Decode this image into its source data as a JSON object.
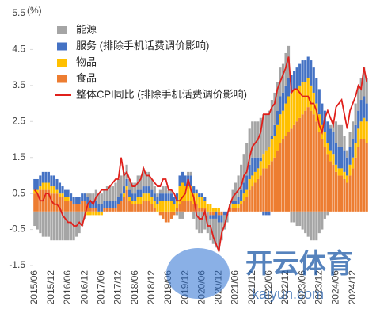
{
  "chart_data": {
    "type": "bar",
    "ylabel": "(%)",
    "ylim": [
      -1.5,
      5.5
    ],
    "yticks": [
      -1.5,
      -0.5,
      0.5,
      1.5,
      2.5,
      3.5,
      4.5,
      5.5
    ],
    "legend": "upper left",
    "stacked": true,
    "watermark": [
      "开云体育",
      "kaiyun.com"
    ],
    "categories": [
      "2015/06",
      null,
      null,
      null,
      null,
      null,
      "2015/12",
      null,
      null,
      null,
      null,
      null,
      "2016/06",
      null,
      null,
      null,
      null,
      null,
      "2016/12",
      null,
      null,
      null,
      null,
      null,
      "2017/06",
      null,
      null,
      null,
      null,
      null,
      "2017/12",
      null,
      null,
      null,
      null,
      null,
      "2018/06",
      null,
      null,
      null,
      null,
      null,
      "2018/12",
      null,
      null,
      null,
      null,
      null,
      "2019/06",
      null,
      null,
      null,
      null,
      null,
      "2019/12",
      null,
      null,
      null,
      null,
      null,
      "2020/06",
      null,
      null,
      null,
      null,
      null,
      "2020/12",
      null,
      null,
      null,
      null,
      null,
      "2021/06",
      null,
      null,
      null,
      null,
      null,
      "2021/12",
      null,
      null,
      null,
      null,
      null,
      "2022/06",
      null,
      null,
      null,
      null,
      null,
      "2022/12",
      null,
      null,
      null,
      null,
      null,
      "2023/06",
      null,
      null,
      null,
      null,
      null,
      "2023/12",
      null,
      null,
      null,
      null,
      null,
      "2024/06",
      null,
      null,
      null,
      null,
      null,
      "2024/12",
      null,
      null,
      null,
      null,
      null
    ],
    "series": [
      {
        "name": "能源",
        "color": "#a5a5a5",
        "values": [
          -0.4,
          -0.5,
          -0.6,
          -0.7,
          -0.7,
          -0.7,
          -0.8,
          -0.8,
          -0.8,
          -0.8,
          -0.8,
          -0.8,
          -0.8,
          -0.8,
          -0.8,
          -0.7,
          -0.6,
          -0.4,
          -0.2,
          0.1,
          0.2,
          0.2,
          0.3,
          0.3,
          0.3,
          0.3,
          0.4,
          0.4,
          0.4,
          0.5,
          0.5,
          0.5,
          0.4,
          0.4,
          0.3,
          0.3,
          0.3,
          0.4,
          0.4,
          0.5,
          0.4,
          0.4,
          0.3,
          0.2,
          0.1,
          0.1,
          0.2,
          0.2,
          0.1,
          0.1,
          0.0,
          -0.1,
          -0.2,
          -0.2,
          0.0,
          0.1,
          0.1,
          -0.2,
          -0.5,
          -0.6,
          -0.6,
          -0.5,
          -0.6,
          -0.6,
          -0.7,
          -0.8,
          -0.8,
          -0.5,
          -0.4,
          -0.2,
          0.1,
          0.3,
          0.5,
          0.6,
          0.7,
          0.8,
          0.9,
          1.0,
          1.0,
          1.0,
          1.0,
          1.1,
          1.1,
          1.0,
          1.0,
          1.0,
          0.9,
          0.8,
          0.8,
          0.8,
          0.9,
          0.9,
          -0.3,
          -0.3,
          -0.4,
          -0.4,
          -0.5,
          -0.6,
          -0.7,
          -0.8,
          -0.8,
          -0.8,
          -0.6,
          -0.5,
          -0.2,
          -0.1,
          0.1,
          0.3,
          0.6,
          0.6,
          0.6,
          0.4,
          0.2,
          0.4,
          0.5,
          0.6,
          0.7,
          0.6,
          0.8,
          0.7
        ]
      },
      {
        "name": "服务 (排除手机话费调价影响)",
        "color": "#4472c4",
        "values": [
          0.3,
          0.3,
          0.3,
          0.3,
          0.3,
          0.3,
          0.3,
          0.3,
          0.3,
          0.3,
          0.2,
          0.2,
          0.2,
          0.2,
          0.2,
          0.2,
          0.2,
          0.2,
          0.2,
          0.2,
          0.2,
          0.2,
          0.2,
          0.2,
          0.2,
          0.2,
          0.2,
          0.2,
          0.2,
          0.2,
          0.2,
          0.2,
          0.2,
          0.2,
          0.2,
          0.2,
          0.2,
          0.2,
          0.2,
          0.2,
          0.2,
          0.2,
          0.2,
          0.2,
          0.2,
          0.2,
          0.2,
          0.2,
          0.2,
          0.2,
          0.2,
          0.2,
          0.3,
          0.3,
          0.3,
          0.3,
          0.3,
          0.2,
          0.1,
          0.1,
          0.1,
          0.1,
          0.0,
          -0.1,
          -0.1,
          -0.2,
          -0.2,
          -0.2,
          -0.1,
          -0.1,
          0.0,
          0.1,
          0.1,
          0.2,
          0.3,
          0.3,
          0.4,
          0.4,
          0.5,
          0.4,
          0.3,
          0.1,
          -0.1,
          -0.1,
          -0.1,
          0.1,
          0.3,
          0.4,
          0.5,
          0.5,
          0.5,
          0.5,
          0.5,
          0.5,
          0.6,
          0.6,
          0.6,
          0.6,
          0.6,
          0.7,
          0.7,
          0.7,
          0.7,
          0.6,
          0.6,
          0.6,
          0.6,
          0.6,
          0.6,
          0.6,
          0.6,
          0.6,
          0.5,
          0.5,
          0.5,
          0.5,
          0.5,
          0.6,
          0.6,
          0.5
        ]
      },
      {
        "name": "物品",
        "color": "#ffc000",
        "values": [
          0.1,
          0.1,
          0.1,
          0.2,
          0.2,
          0.2,
          0.2,
          0.2,
          0.1,
          0.1,
          0.1,
          0.1,
          0.1,
          0.0,
          0.0,
          0.0,
          0.0,
          0.0,
          0.0,
          -0.1,
          -0.1,
          -0.1,
          -0.1,
          -0.1,
          -0.1,
          0.0,
          0.0,
          0.0,
          0.0,
          0.0,
          0.0,
          0.0,
          0.1,
          0.1,
          0.1,
          0.1,
          0.1,
          0.2,
          0.2,
          0.2,
          0.2,
          0.2,
          0.2,
          0.2,
          0.2,
          0.3,
          0.3,
          0.3,
          0.3,
          0.3,
          0.2,
          0.2,
          0.5,
          0.5,
          0.4,
          0.4,
          0.4,
          0.3,
          0.3,
          0.3,
          0.3,
          0.2,
          0.2,
          0.2,
          0.1,
          0.1,
          0.1,
          0.0,
          0.0,
          0.0,
          0.0,
          0.1,
          0.1,
          0.1,
          0.1,
          0.2,
          0.2,
          0.3,
          0.3,
          0.3,
          0.3,
          0.4,
          0.4,
          0.5,
          0.5,
          0.6,
          0.6,
          0.7,
          0.8,
          0.8,
          0.9,
          1.0,
          1.0,
          1.0,
          0.9,
          0.9,
          0.9,
          0.8,
          0.8,
          0.7,
          0.6,
          0.5,
          0.5,
          0.4,
          0.4,
          0.3,
          0.3,
          0.3,
          0.2,
          0.2,
          0.2,
          0.2,
          0.2,
          0.3,
          0.3,
          0.4,
          0.5,
          0.5,
          0.6,
          0.6
        ]
      },
      {
        "name": "食品",
        "color": "#ed7d31",
        "values": [
          0.5,
          0.5,
          0.6,
          0.6,
          0.6,
          0.6,
          0.5,
          0.5,
          0.5,
          0.4,
          0.4,
          0.3,
          0.3,
          0.3,
          0.2,
          0.2,
          0.2,
          0.3,
          0.3,
          0.2,
          0.1,
          0.1,
          0.1,
          0.0,
          0.0,
          0.1,
          0.1,
          0.1,
          0.1,
          0.1,
          0.2,
          0.3,
          0.4,
          0.6,
          0.3,
          0.2,
          0.2,
          0.2,
          0.2,
          0.3,
          0.3,
          0.3,
          0.2,
          0.1,
          0.0,
          -0.1,
          -0.2,
          -0.3,
          -0.3,
          -0.2,
          -0.1,
          0.1,
          0.2,
          0.3,
          0.3,
          0.3,
          0.3,
          0.2,
          0.2,
          0.1,
          0.1,
          0.1,
          0.0,
          -0.1,
          -0.1,
          0.0,
          -0.1,
          -0.1,
          0.0,
          0.0,
          0.1,
          0.1,
          0.1,
          0.1,
          0.2,
          0.3,
          0.4,
          0.6,
          0.7,
          0.8,
          0.9,
          1.0,
          1.2,
          1.2,
          1.3,
          1.4,
          1.5,
          1.7,
          1.9,
          2.0,
          2.1,
          2.2,
          2.3,
          2.4,
          2.5,
          2.6,
          2.7,
          2.8,
          2.9,
          2.8,
          2.7,
          2.5,
          2.2,
          2.0,
          1.8,
          1.6,
          1.4,
          1.3,
          1.1,
          1.0,
          1.0,
          0.9,
          0.8,
          1.0,
          1.2,
          1.5,
          1.8,
          2.0,
          2.0,
          1.9
        ]
      },
      {
        "name": "整体CPI同比 (排除手机话费调价影响)",
        "type": "line",
        "color": "#e0201b",
        "values": [
          0.6,
          0.5,
          0.3,
          0.3,
          0.5,
          0.5,
          0.3,
          0.2,
          0.2,
          0.1,
          -0.1,
          -0.2,
          -0.3,
          -0.3,
          -0.4,
          -0.4,
          -0.3,
          -0.4,
          -0.1,
          0.2,
          0.3,
          0.2,
          0.4,
          0.5,
          0.6,
          0.6,
          0.6,
          0.7,
          0.8,
          0.9,
          0.9,
          1.5,
          1.0,
          1.1,
          0.9,
          0.7,
          0.7,
          0.8,
          0.9,
          1.2,
          1.0,
          1.0,
          0.9,
          0.8,
          0.7,
          0.7,
          0.9,
          0.9,
          0.6,
          0.6,
          0.5,
          0.3,
          0.3,
          0.4,
          0.5,
          0.9,
          0.6,
          0.4,
          -0.1,
          -0.2,
          -0.2,
          0.0,
          -0.4,
          -0.4,
          -0.7,
          -0.9,
          -1.1,
          -0.6,
          -0.4,
          -0.1,
          0.2,
          0.4,
          0.5,
          0.6,
          0.7,
          1.0,
          1.1,
          1.5,
          1.8,
          1.9,
          2.0,
          2.2,
          2.7,
          2.7,
          2.7,
          2.9,
          3.0,
          3.4,
          3.6,
          3.8,
          4.0,
          4.3,
          3.3,
          3.4,
          3.4,
          3.3,
          3.2,
          3.2,
          3.2,
          3.0,
          3.0,
          2.8,
          2.4,
          2.2,
          2.6,
          2.8,
          2.6,
          2.4,
          2.9,
          3.0,
          3.1,
          2.7,
          2.3,
          2.8,
          3.0,
          3.2,
          3.5,
          3.4,
          4.0,
          3.6
        ]
      }
    ]
  }
}
